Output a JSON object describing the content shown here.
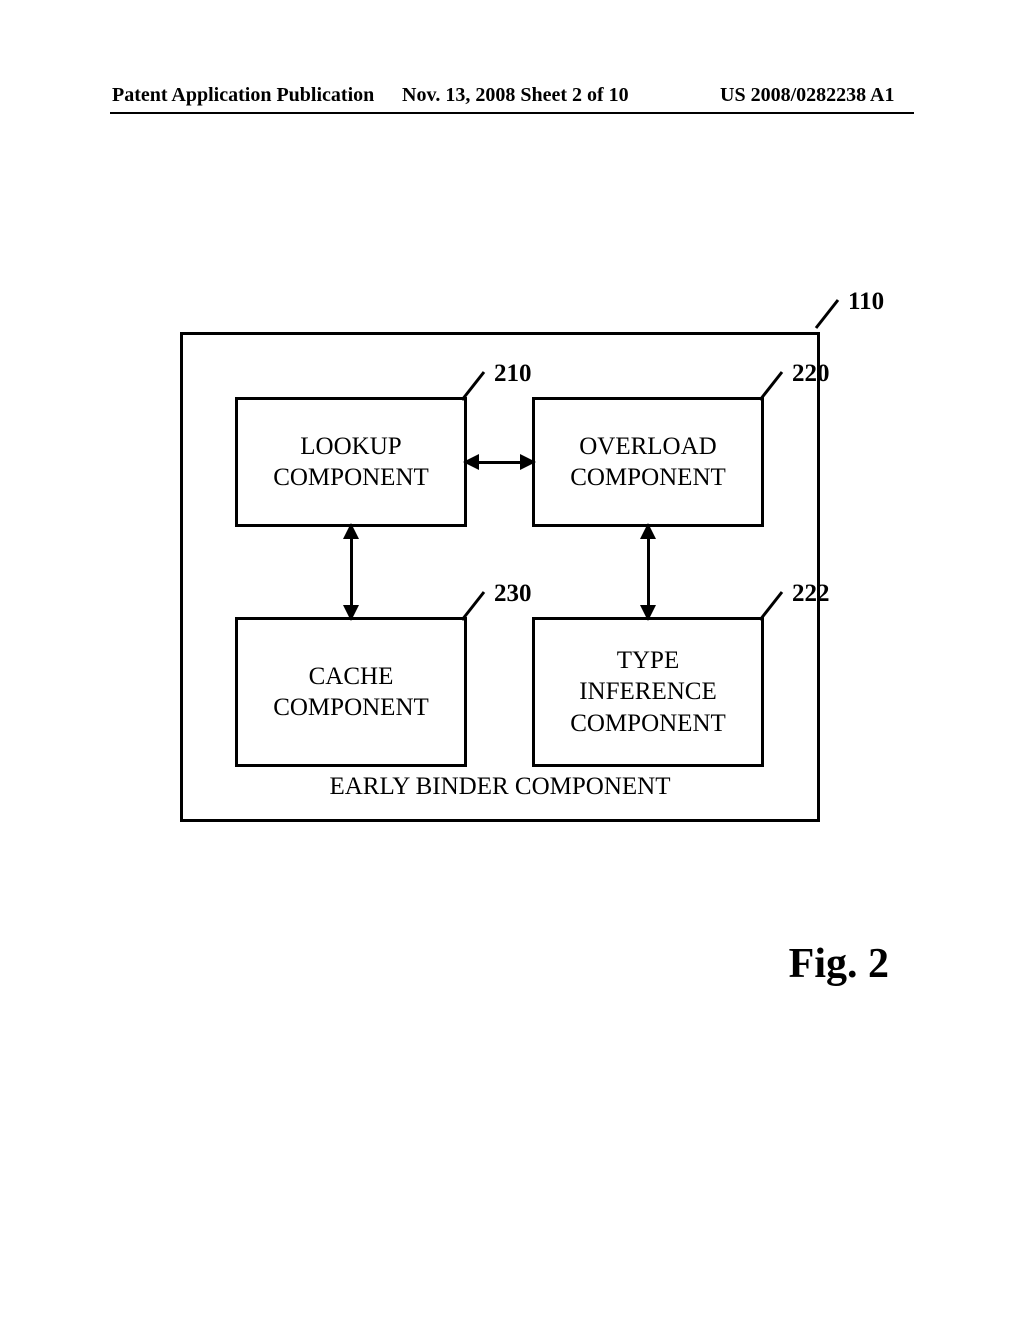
{
  "header": {
    "left": "Patent Application Publication",
    "mid": "Nov. 13, 2008  Sheet 2 of 10",
    "right": "US 2008/0282238 A1"
  },
  "diagram": {
    "type": "flowchart",
    "outer": {
      "ref": "110",
      "label": "EARLY BINDER COMPONENT"
    },
    "nodes": {
      "a": {
        "ref": "210",
        "label": "LOOKUP\nCOMPONENT"
      },
      "b": {
        "ref": "220",
        "label": "OVERLOAD\nCOMPONENT"
      },
      "c": {
        "ref": "230",
        "label": "CACHE\nCOMPONENT"
      },
      "d": {
        "ref": "222",
        "label": "TYPE\nINFERENCE\nCOMPONENT"
      }
    },
    "colors": {
      "stroke": "#000000",
      "background": "#ffffff"
    },
    "font": {
      "box_fontsize": 25,
      "header_fontsize": 20,
      "fig_fontsize": 42
    }
  },
  "figure": {
    "label": "Fig. 2"
  }
}
